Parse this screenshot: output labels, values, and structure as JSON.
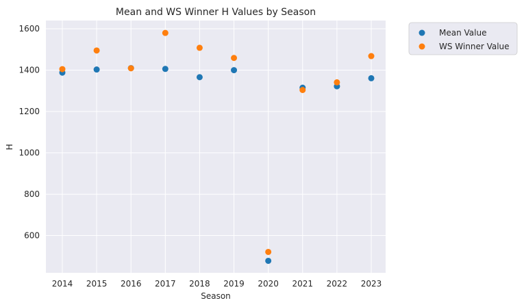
{
  "chart_data": {
    "type": "scatter",
    "title": "Mean and WS Winner H Values by Season",
    "xlabel": "Season",
    "ylabel": "H",
    "x": [
      2014,
      2015,
      2016,
      2017,
      2018,
      2019,
      2020,
      2021,
      2022,
      2023
    ],
    "x_ticks": [
      "2014",
      "2015",
      "2016",
      "2017",
      "2018",
      "2019",
      "2020",
      "2021",
      "2022",
      "2023"
    ],
    "y_ticks": [
      600,
      800,
      1000,
      1200,
      1400,
      1600
    ],
    "ylim": [
      420,
      1640
    ],
    "grid": true,
    "legend_position": "outside-top-right",
    "series": [
      {
        "name": "Mean Value",
        "color": "#1f77b4",
        "values": [
          1388,
          1403,
          1410,
          1406,
          1366,
          1400,
          478,
          1315,
          1322,
          1361
        ]
      },
      {
        "name": "WS Winner Value",
        "color": "#ff7f0e",
        "values": [
          1405,
          1495,
          1409,
          1580,
          1508,
          1459,
          521,
          1304,
          1341,
          1468
        ]
      }
    ]
  }
}
